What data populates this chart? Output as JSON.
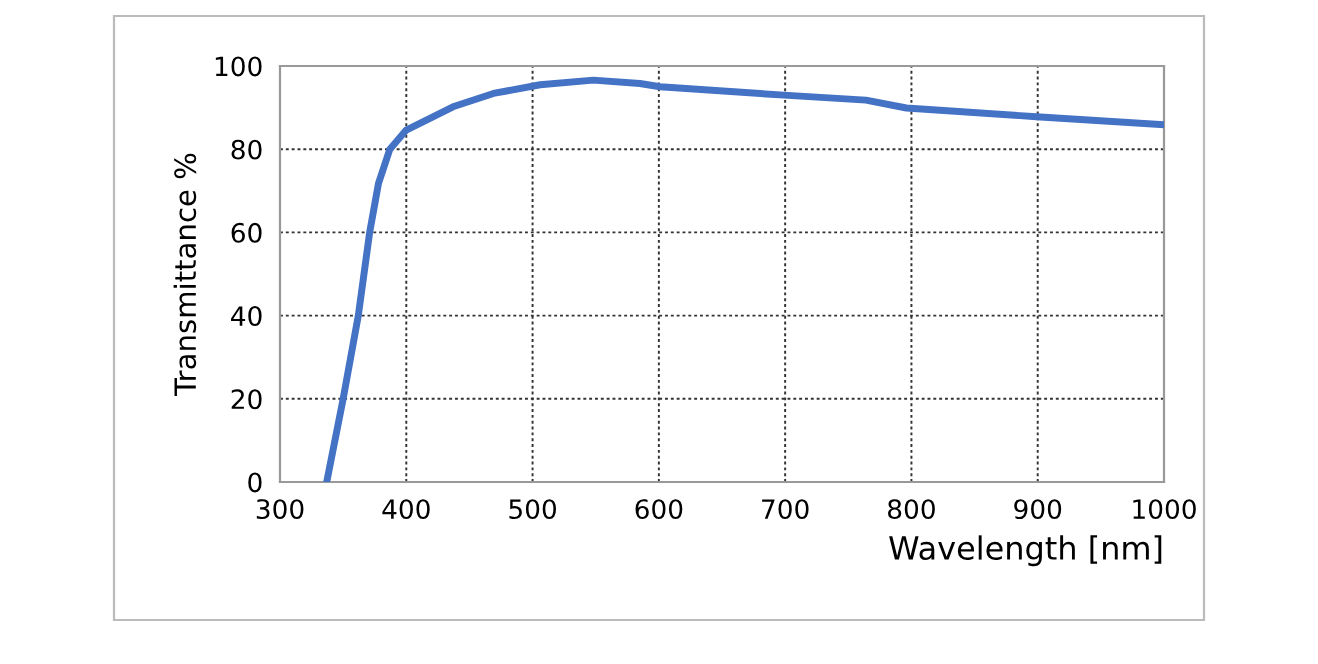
{
  "chart_data": {
    "type": "line",
    "xlabel": "Wavelength [nm]",
    "ylabel": "Transmittance %",
    "series": [
      {
        "color": "#4472c4",
        "x": [
          337,
          350,
          362,
          371,
          378,
          387,
          400,
          437,
          469,
          506,
          548,
          585,
          601,
          699,
          764,
          796,
          899,
          1000
        ],
        "values": [
          0,
          20,
          40,
          60,
          71.8,
          80,
          84.6,
          90.2,
          93.4,
          95.5,
          96.6,
          95.8,
          95,
          93,
          91.8,
          89.9,
          87.8,
          85.9
        ]
      }
    ],
    "xlim": [
      300,
      1000
    ],
    "xticks": [
      300,
      400,
      500,
      600,
      700,
      800,
      900,
      1000
    ],
    "ylim": [
      0,
      100
    ],
    "yticks": [
      0,
      20,
      40,
      60,
      80,
      100
    ],
    "grid": true,
    "legend": false,
    "marker": "none",
    "line_style": "solid"
  }
}
